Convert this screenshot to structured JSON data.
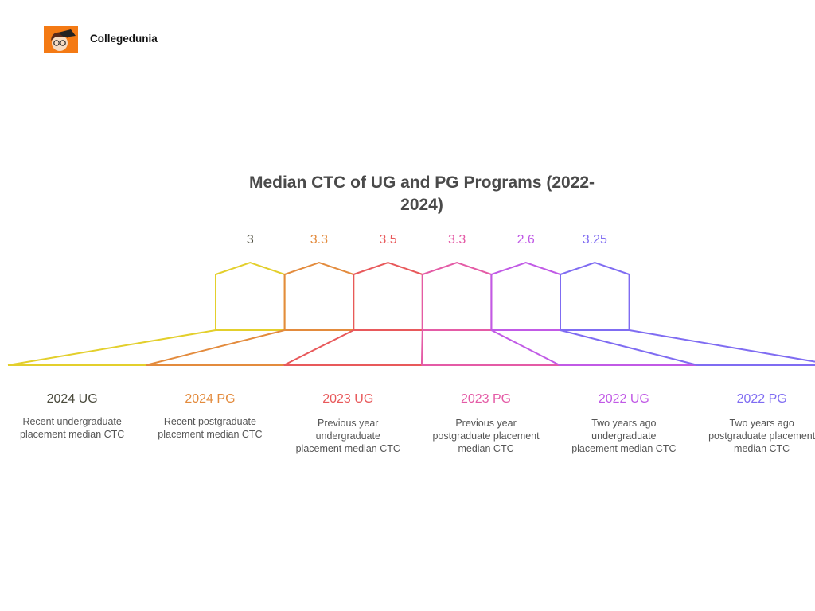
{
  "brand": {
    "name": "Collegedunia",
    "logo_icon": "cartoon-student-avatar"
  },
  "chart_data": {
    "type": "bar",
    "title": "Median CTC of UG and PG Programs (2022-2024)",
    "title_lines": [
      "Median CTC of UG and PG Programs (2022-",
      "2024)"
    ],
    "categories": [
      "2024 UG",
      "2024 PG",
      "2023 UG",
      "2023 PG",
      "2022 UG",
      "2022 PG"
    ],
    "values": [
      3,
      3.3,
      3.5,
      3.3,
      2.6,
      3.25
    ],
    "value_labels": [
      "3",
      "3.3",
      "3.5",
      "3.3",
      "2.6",
      "3.25"
    ],
    "descriptions": [
      [
        "Recent undergraduate",
        "placement median CTC"
      ],
      [
        "Recent postgraduate",
        "placement median CTC"
      ],
      [
        "Previous year",
        "undergraduate",
        "placement median CTC"
      ],
      [
        "Previous year",
        "postgraduate placement",
        "median CTC"
      ],
      [
        "Two years ago",
        "undergraduate",
        "placement median CTC"
      ],
      [
        "Two years ago",
        "postgraduate placement",
        "median CTC"
      ]
    ],
    "colors": [
      "#e3cf2c",
      "#e38b3d",
      "#e8595b",
      "#e45ba6",
      "#c15ae6",
      "#7f6cf2"
    ],
    "label_colors": [
      "#4a4a3c",
      "#e38b3d",
      "#e8595b",
      "#e45ba6",
      "#c15ae6",
      "#7f6cf2"
    ],
    "xlabel": "",
    "ylabel": ""
  }
}
